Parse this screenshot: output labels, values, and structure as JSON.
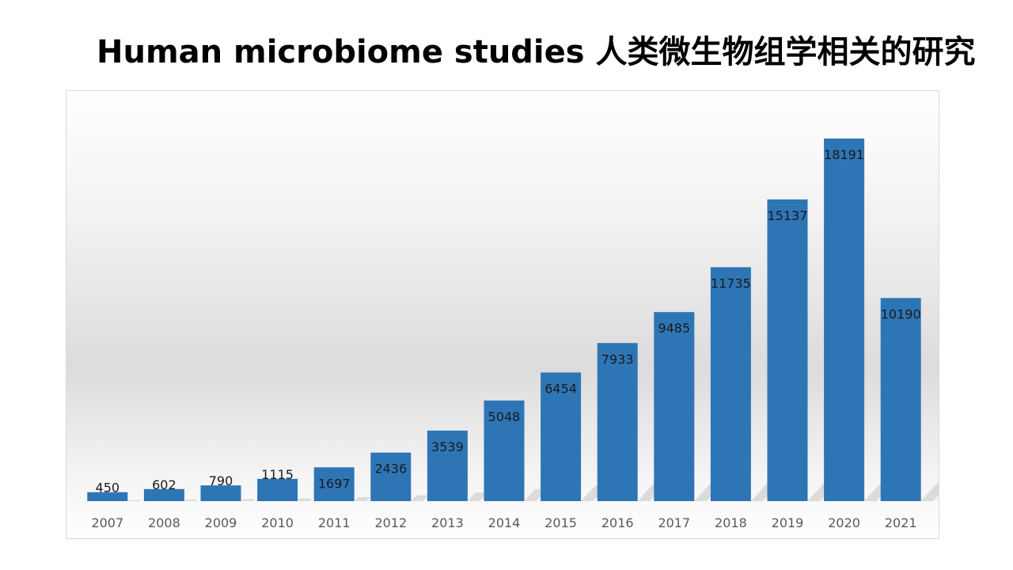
{
  "slide": {
    "title": "Human microbiome studies 人类微生物组学相关的研究"
  },
  "colors": {
    "bar": "#2e75b6",
    "bar_shadow": "#a6a6a6"
  },
  "chart_data": {
    "type": "bar",
    "title": "",
    "xlabel": "",
    "ylabel": "",
    "categories": [
      "2007",
      "2008",
      "2009",
      "2010",
      "2011",
      "2012",
      "2013",
      "2014",
      "2015",
      "2016",
      "2017",
      "2018",
      "2019",
      "2020",
      "2021"
    ],
    "values": [
      450,
      602,
      790,
      1115,
      1697,
      2436,
      3539,
      5048,
      6454,
      7933,
      9485,
      11735,
      15137,
      18191,
      10190
    ],
    "ylim": [
      0,
      20000
    ],
    "grid": false,
    "legend": "none",
    "data_labels": true
  }
}
